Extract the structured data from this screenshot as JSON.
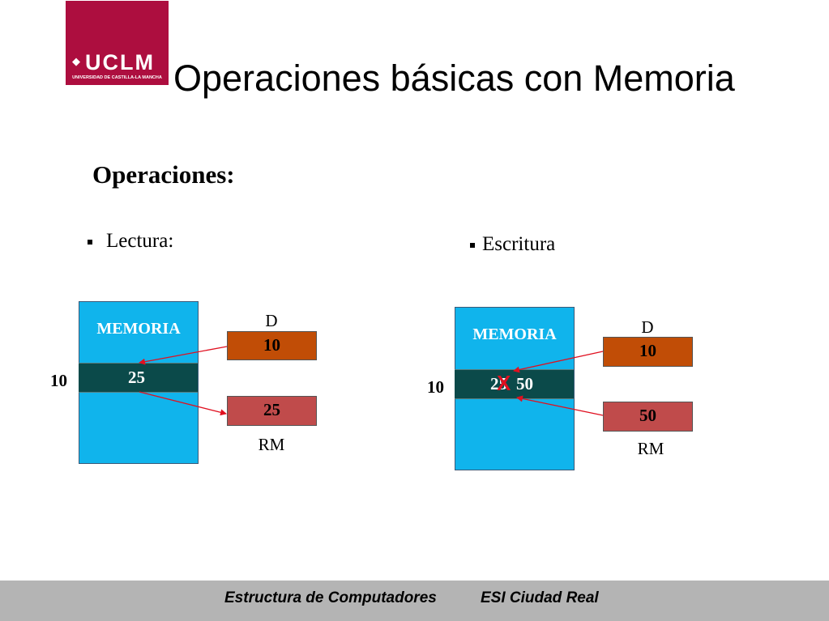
{
  "logo": {
    "name": "UCLM",
    "subtitle": "UNIVERSIDAD DE CASTILLA-LA MANCHA",
    "brand_color": "#ad0e3f"
  },
  "title": "Operaciones básicas con Memoria",
  "section_label": "Operaciones:",
  "lectura": {
    "bullet": "Lectura:",
    "memory_label": "MEMORIA",
    "address": "10",
    "cell_value": "25",
    "d_label": "D",
    "d_value": "10",
    "rm_label": "RM",
    "rm_value": "25"
  },
  "escritura": {
    "bullet": "Escritura",
    "memory_label": "MEMORIA",
    "address": "10",
    "old_value": "25",
    "cross_mark": "X",
    "new_value": "50",
    "d_label": "D",
    "d_value": "10",
    "rm_label": "RM",
    "rm_value": "50"
  },
  "colors": {
    "memory": "#10b4ec",
    "cell": "#0b4a4a",
    "register_d": "#c14d06",
    "register_rm": "#c04b4b",
    "arrow": "#e01020",
    "footer": "#b4b4b4"
  },
  "footer": {
    "left": "Estructura de Computadores",
    "right": "ESI Ciudad Real"
  }
}
